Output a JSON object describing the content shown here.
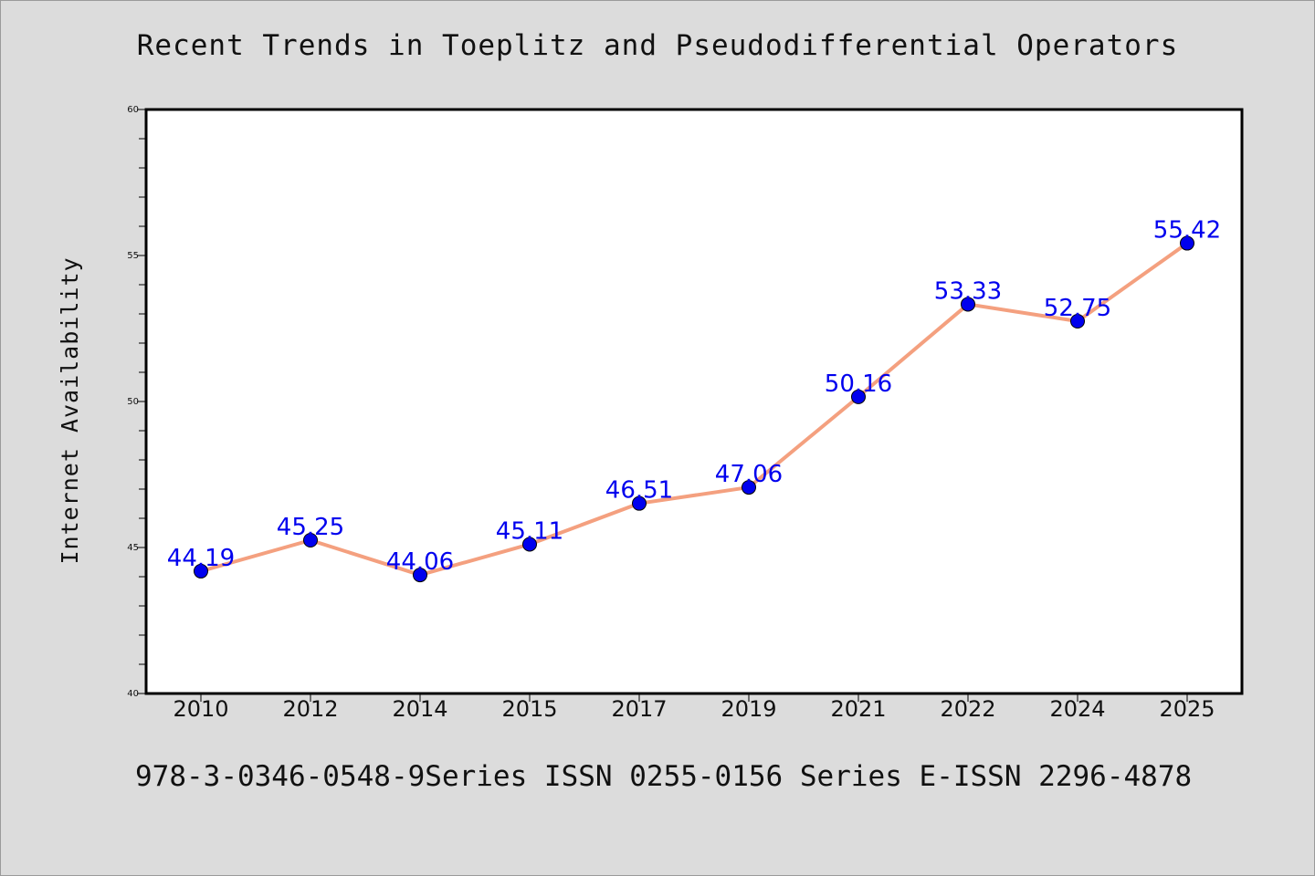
{
  "chart_data": {
    "type": "line",
    "title": "Recent Trends in Toeplitz and Pseudodifferential Operators",
    "footer": "978-3-0346-0548-9Series ISSN 0255-0156 Series E-ISSN 2296-4878",
    "xlabel": "",
    "ylabel": "Internet Availability",
    "categories": [
      "2010",
      "2012",
      "2014",
      "2015",
      "2017",
      "2019",
      "2021",
      "2022",
      "2024",
      "2025"
    ],
    "values": [
      44.19,
      45.25,
      44.06,
      45.11,
      46.51,
      47.06,
      50.16,
      53.33,
      52.75,
      55.42
    ],
    "data_labels": [
      "44.19",
      "45.25",
      "44.06",
      "45.11",
      "46.51",
      "47.06",
      "50.16",
      "53.33",
      "52.75",
      "55.42"
    ],
    "ylim": [
      40,
      60
    ],
    "yticks": [
      "40",
      "45",
      "50",
      "55",
      "60"
    ],
    "grid": false,
    "line_color": "#f4a07f",
    "marker_color": "#0000ee",
    "label_color": "#0000ee",
    "background": "#dcdcdc",
    "plot_background": "#ffffff"
  }
}
